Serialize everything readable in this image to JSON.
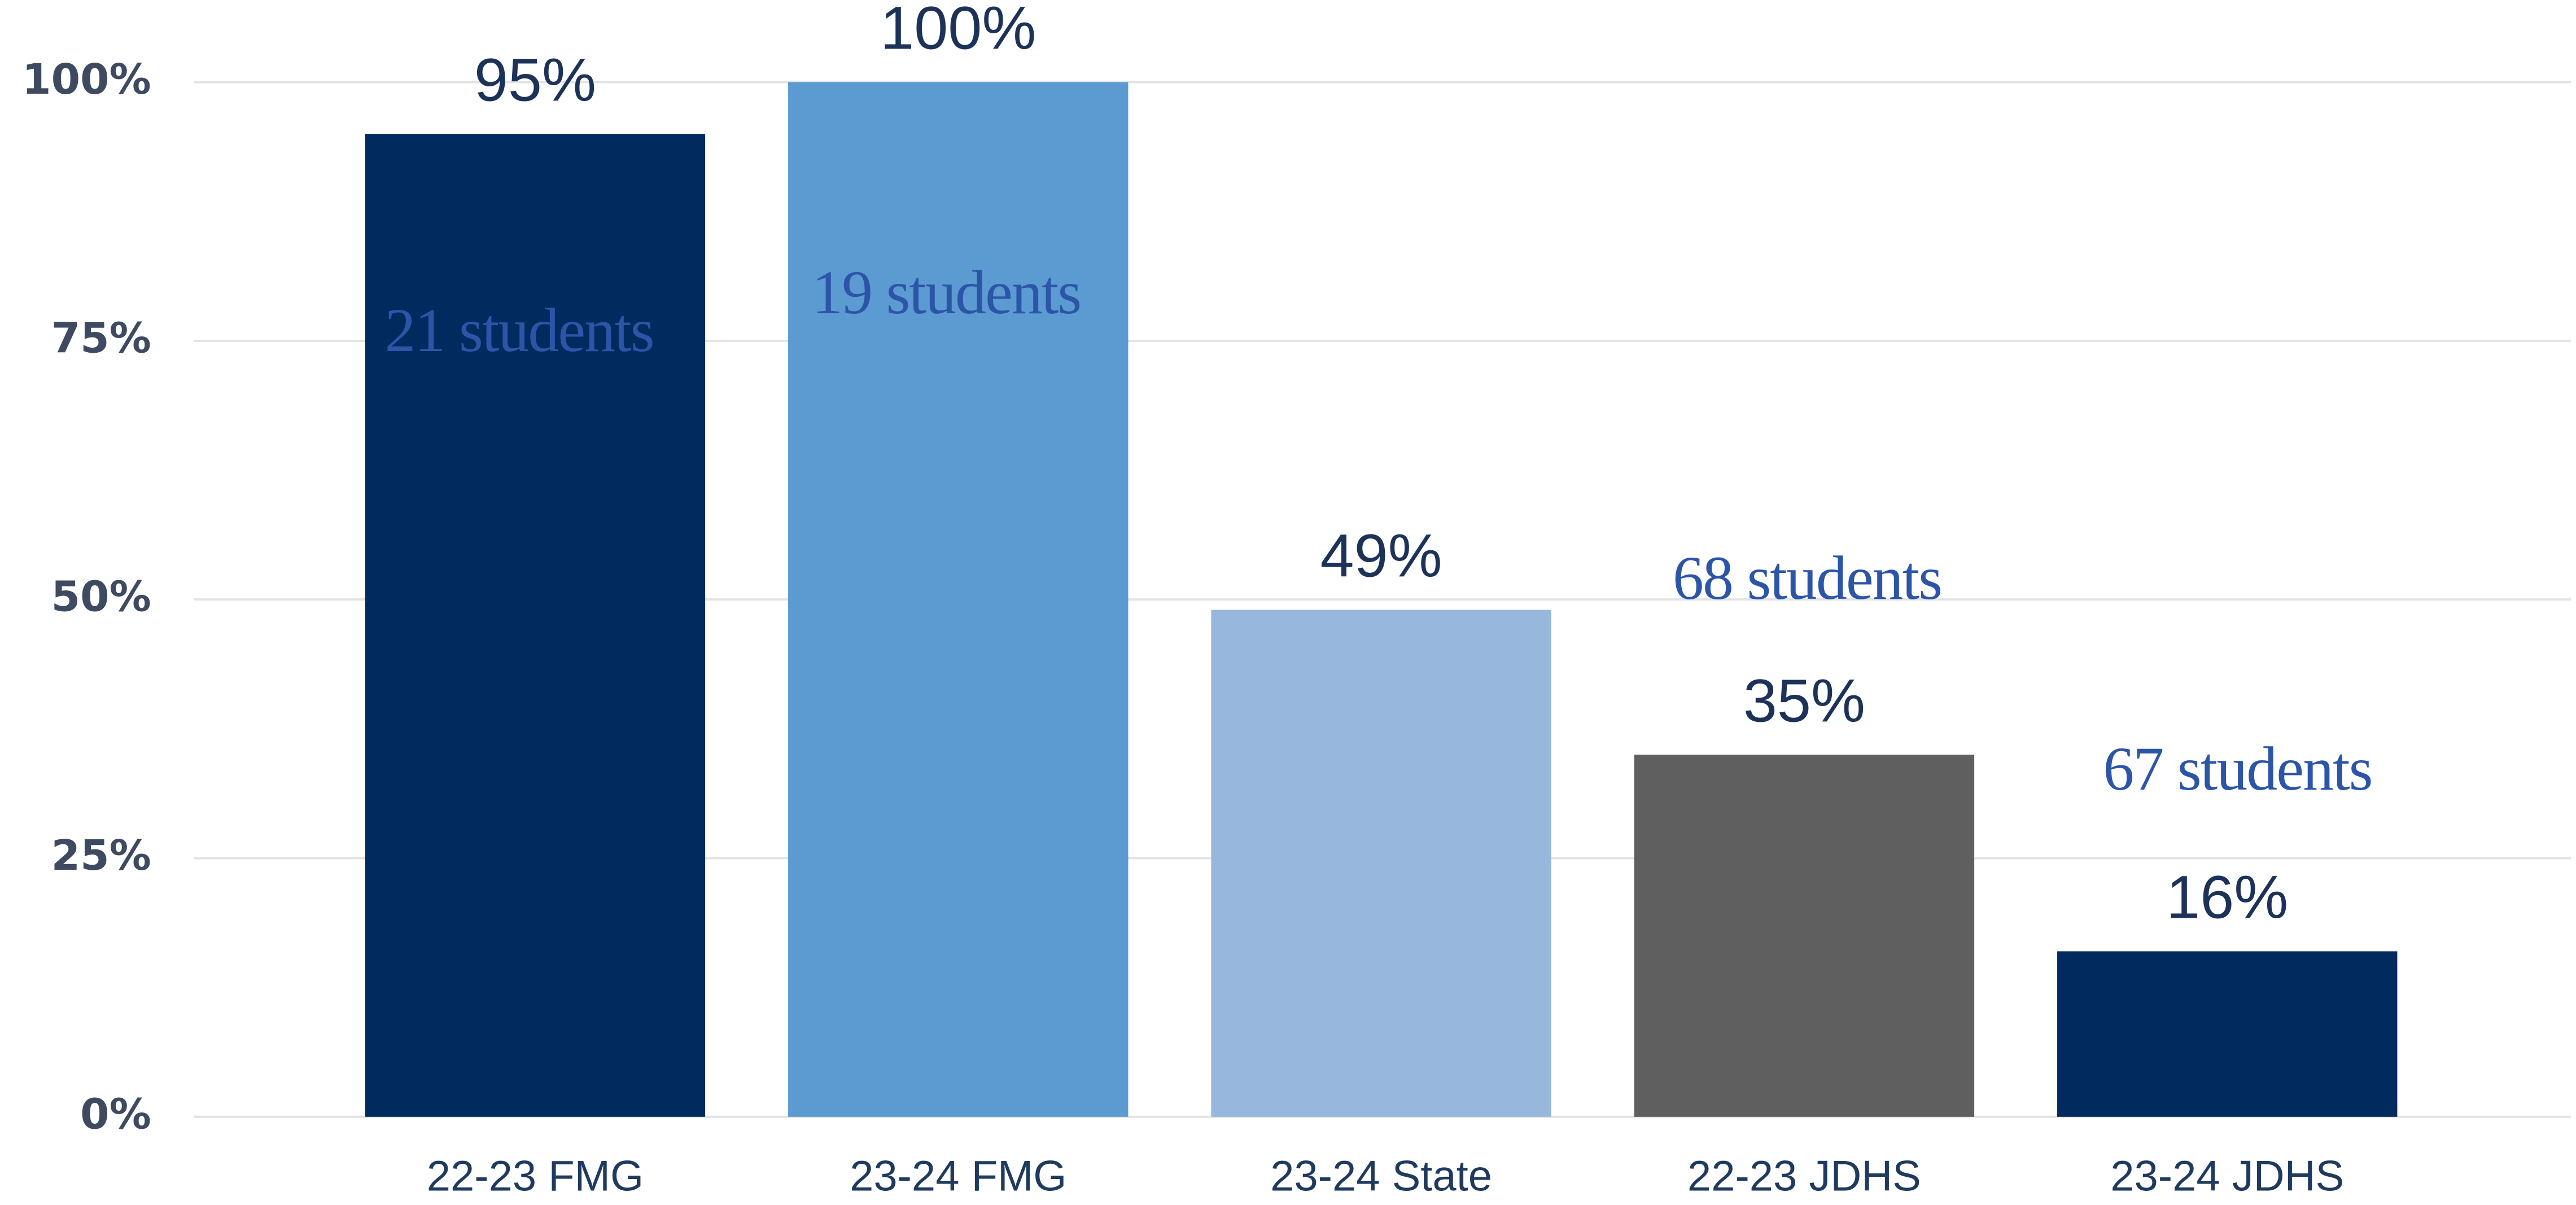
{
  "chart_data": {
    "type": "bar",
    "categories": [
      "22-23 FMG",
      "23-24 FMG",
      "23-24 State",
      "22-23 JDHS",
      "23-24 JDHS"
    ],
    "values": [
      95,
      100,
      49,
      35,
      16
    ],
    "value_labels": [
      "95%",
      "100%",
      "49%",
      "35%",
      "16%"
    ],
    "colors": [
      "#012a5e",
      "#5b9bd2",
      "#97b8dc",
      "#5f5f5f",
      "#012a5e"
    ],
    "ylim": [
      0,
      100
    ],
    "yticks": [
      {
        "value": 0,
        "label": "0%"
      },
      {
        "value": 25,
        "label": "25%"
      },
      {
        "value": 50,
        "label": "50%"
      },
      {
        "value": 75,
        "label": "75%"
      },
      {
        "value": 100,
        "label": "100%"
      }
    ],
    "grid": true,
    "annotations": [
      "21 students",
      "19 students",
      "68 students",
      "67 students"
    ]
  }
}
